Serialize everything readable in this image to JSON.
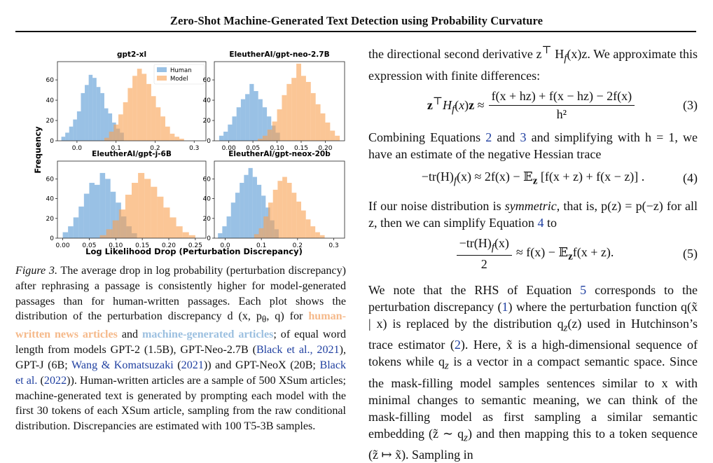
{
  "header": {
    "title": "Zero-Shot Machine-Generated Text Detection using Probability Curvature"
  },
  "figure": {
    "ylabel": "Frequency",
    "xlabel": "Log Likelihood Drop (Perturbation Discrepancy)",
    "legend": [
      "Human",
      "Model"
    ],
    "colors": {
      "human": "#5b9bd5",
      "model": "#f8a356"
    }
  },
  "chart_data": [
    {
      "type": "bar",
      "title": "gpt2-xl",
      "xlim": [
        -0.05,
        0.33
      ],
      "ylim": [
        0,
        78
      ],
      "xticks": [
        "0.0",
        "0.1",
        "0.2",
        "0.3"
      ],
      "yticks": [
        "0",
        "20",
        "40",
        "60"
      ],
      "series": [
        {
          "name": "Human",
          "bin_start": -0.04,
          "bin_width": 0.01,
          "values": [
            4,
            8,
            14,
            21,
            29,
            47,
            55,
            65,
            62,
            53,
            47,
            32,
            27,
            18,
            12,
            8
          ]
        },
        {
          "name": "Model",
          "bin_start": 0.07,
          "bin_width": 0.012,
          "values": [
            3,
            9,
            16,
            26,
            38,
            52,
            64,
            71,
            66,
            56,
            44,
            33,
            24,
            14,
            7,
            4,
            2
          ]
        }
      ]
    },
    {
      "type": "bar",
      "title": "EleutherAI/gpt-neo-2.7B",
      "xlim": [
        -0.03,
        0.24
      ],
      "ylim": [
        0,
        78
      ],
      "xticks": [
        "0.00",
        "0.05",
        "0.10",
        "0.15",
        "0.20"
      ],
      "yticks": [
        "0",
        "20",
        "40",
        "60"
      ],
      "series": [
        {
          "name": "Human",
          "bin_start": -0.02,
          "bin_width": 0.009,
          "values": [
            5,
            9,
            16,
            24,
            33,
            41,
            46,
            56,
            49,
            41,
            33,
            24,
            15,
            8
          ]
        },
        {
          "name": "Model",
          "bin_start": 0.06,
          "bin_width": 0.01,
          "values": [
            2,
            5,
            11,
            19,
            31,
            45,
            56,
            62,
            76,
            64,
            58,
            47,
            36,
            27,
            18,
            10,
            5
          ]
        }
      ]
    },
    {
      "type": "bar",
      "title": "EleutherAI/gpt-j-6B",
      "xlim": [
        -0.01,
        0.27
      ],
      "ylim": [
        0,
        78
      ],
      "xticks": [
        "0.00",
        "0.05",
        "0.10",
        "0.15",
        "0.20",
        "0.25"
      ],
      "yticks": [
        "0",
        "20",
        "40",
        "60"
      ],
      "series": [
        {
          "name": "Human",
          "bin_start": 0.0,
          "bin_width": 0.01,
          "values": [
            6,
            12,
            21,
            32,
            45,
            56,
            54,
            66,
            60,
            47,
            36,
            22,
            12,
            5
          ]
        },
        {
          "name": "Model",
          "bin_start": 0.07,
          "bin_width": 0.012,
          "values": [
            3,
            9,
            18,
            29,
            44,
            56,
            66,
            60,
            52,
            42,
            31,
            21,
            12,
            6,
            3
          ]
        }
      ]
    },
    {
      "type": "bar",
      "title": "EleutherAI/gpt-neox-20b",
      "xlim": [
        -0.03,
        0.33
      ],
      "ylim": [
        0,
        78
      ],
      "xticks": [
        "0.0",
        "0.1",
        "0.2",
        "0.3"
      ],
      "yticks": [
        "0",
        "20",
        "40",
        "60"
      ],
      "series": [
        {
          "name": "Human",
          "bin_start": -0.02,
          "bin_width": 0.012,
          "values": [
            5,
            12,
            22,
            36,
            46,
            56,
            64,
            71,
            62,
            54,
            43,
            31,
            18,
            9
          ]
        },
        {
          "name": "Model",
          "bin_start": 0.08,
          "bin_width": 0.013,
          "values": [
            4,
            10,
            22,
            36,
            49,
            58,
            62,
            56,
            46,
            37,
            28,
            19,
            12,
            6,
            3
          ]
        }
      ]
    }
  ],
  "caption": {
    "fig_label": "Figure 3.",
    "text1": " The average drop in log probability (perturbation discrepancy) after rephrasing a passage is consistently higher for model-generated passages than for human-written passages. Each plot shows the distribution of the perturbation discrepancy d (x, p",
    "text1_sub": "θ",
    "text1_end": ", q) for ",
    "hl_human": "human-written news articles",
    "and": " and ",
    "hl_model": "machine-generated articles",
    "text2": "; of equal word length from models GPT-2 (1.5B), GPT-Neo-2.7B (",
    "ref1": "Black et al., 2021",
    "text3": "), GPT-J (6B; ",
    "ref2": "Wang & Komatsuzaki",
    "text3b": " (",
    "ref2y": "2021",
    "text4": ")) and GPT-NeoX (20B; ",
    "ref3": "Black et al.",
    "text4b": " (",
    "ref3y": "2022",
    "text5": ")). Human-written articles are a sample of 500 XSum articles; machine-generated text is generated by prompting each model with the first 30 tokens of each XSum article, sampling from the raw conditional distribution. Discrepancies are estimated with 100 T5-3B samples."
  },
  "right": {
    "p1": "the directional second derivative z",
    "p1b": " H",
    "p1c": "(x)z. We approximate this expression with finite differences:",
    "eq3_lhs": "z",
    "eq3_num": "f(x + hz) + f(x − hz) − 2f(x)",
    "eq3_den": "h²",
    "eq3_no": "(3)",
    "p2a": "Combining Equations ",
    "p2r1": "2",
    "p2b": " and ",
    "p2r2": "3",
    "p2c": " and simplifying with h = 1, we have an estimate of the negative Hessian trace",
    "eq4": "−tr(H)",
    "eq4b": "(x) ≈ 2f(x) − 𝔼",
    "eq4c": " [f(x + z) + f(x − z)] .",
    "eq4_no": "(4)",
    "p3a": "If our noise distribution is ",
    "p3sym": "symmetric",
    "p3b": ", that is, p(z) = p(−z) for all z, then we can simplify Equation ",
    "p3r": "4",
    "p3c": " to",
    "eq5_num": "−tr(H)",
    "eq5_num_end": "(x)",
    "eq5_den": "2",
    "eq5_rhs": "≈ f(x) − 𝔼",
    "eq5_rhs2": "f(x + z).",
    "eq5_no": "(5)",
    "p4a": "We note that the RHS of Equation ",
    "p4r1": "5",
    "p4b": " corresponds to the perturbation discrepancy (",
    "p4r2": "1",
    "p4c": ") where the perturbation function q(x̃ | x) is replaced by the distribution q",
    "p4d": "(z) used in Hutchinson’s trace estimator (",
    "p4r3": "2",
    "p4e": "). Here, x̃ is a high-dimensional sequence of tokens while q",
    "p4f": " is a vector in a compact semantic space. Since the mask-filling model samples sentences similar to x with minimal changes to semantic meaning, we can think of the mask-filling model as first sampling a similar semantic embedding (z̃ ∼ q",
    "p4g": ") and then mapping this to a token sequence (z̃ ↦ x̃). Sampling in"
  }
}
